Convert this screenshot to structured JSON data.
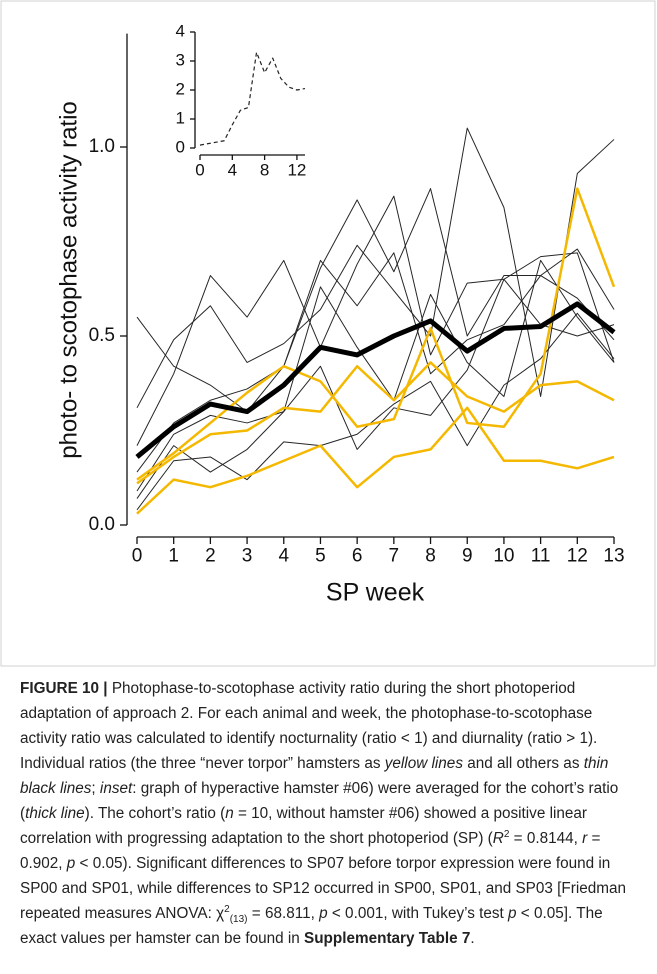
{
  "chart_data": [
    {
      "type": "line",
      "y_label": "photo- to scotophase activity ratio",
      "x_label": "SP week",
      "x": [
        0,
        1,
        2,
        3,
        4,
        5,
        6,
        7,
        8,
        9,
        10,
        11,
        12,
        13
      ],
      "xlim": [
        0,
        13
      ],
      "xticks": [
        0,
        1,
        2,
        3,
        4,
        5,
        6,
        7,
        8,
        9,
        10,
        11,
        12,
        13
      ],
      "ylim": [
        0,
        1.3
      ],
      "yticks": [
        {
          "value": 0,
          "label": "0.0"
        },
        {
          "value": 0.5,
          "label": "0.5"
        },
        {
          "value": 1,
          "label": "1.0"
        }
      ],
      "series": [
        {
          "color": "#262626",
          "width": 1,
          "values": [
            0.55,
            0.42,
            0.37,
            0.3,
            0.42,
            0.68,
            0.86,
            0.67,
            0.89,
            0.5,
            0.66,
            0.66,
            0.73,
            0.57
          ]
        },
        {
          "color": "#262626",
          "width": 1,
          "values": [
            0.31,
            0.49,
            0.58,
            0.43,
            0.48,
            0.57,
            0.74,
            0.62,
            0.5,
            1.05,
            0.84,
            0.34,
            0.93,
            1.02
          ]
        },
        {
          "color": "#262626",
          "width": 1,
          "values": [
            0.21,
            0.4,
            0.66,
            0.55,
            0.7,
            0.47,
            0.69,
            0.87,
            0.45,
            0.64,
            0.65,
            0.71,
            0.72,
            0.43
          ]
        },
        {
          "color": "#262626",
          "width": 1,
          "values": [
            0.14,
            0.27,
            0.33,
            0.36,
            0.42,
            0.7,
            0.58,
            0.72,
            0.4,
            0.49,
            0.53,
            0.66,
            0.6,
            0.49
          ]
        },
        {
          "color": "#262626",
          "width": 1,
          "values": [
            0.09,
            0.24,
            0.29,
            0.27,
            0.3,
            0.63,
            0.47,
            0.33,
            0.61,
            0.43,
            0.34,
            0.7,
            0.55,
            0.43
          ]
        },
        {
          "color": "#262626",
          "width": 1,
          "values": [
            0.07,
            0.21,
            0.14,
            0.2,
            0.3,
            0.42,
            0.2,
            0.31,
            0.29,
            0.41,
            0.65,
            0.53,
            0.5,
            0.53
          ]
        },
        {
          "color": "#262626",
          "width": 1,
          "values": [
            0.04,
            0.17,
            0.18,
            0.12,
            0.22,
            0.21,
            0.24,
            0.32,
            0.38,
            0.21,
            0.37,
            0.44,
            0.56,
            0.44
          ]
        },
        {
          "color": "#f5b800",
          "width": 2.5,
          "values": [
            0.12,
            0.19,
            0.27,
            0.35,
            0.42,
            0.38,
            0.26,
            0.28,
            0.52,
            0.27,
            0.26,
            0.4,
            0.89,
            0.63
          ]
        },
        {
          "color": "#f5b800",
          "width": 2.5,
          "values": [
            0.11,
            0.18,
            0.24,
            0.25,
            0.31,
            0.3,
            0.42,
            0.33,
            0.43,
            0.34,
            0.3,
            0.37,
            0.38,
            0.33
          ]
        },
        {
          "color": "#f5b800",
          "width": 2.5,
          "values": [
            0.03,
            0.12,
            0.1,
            0.13,
            0.17,
            0.21,
            0.1,
            0.18,
            0.2,
            0.31,
            0.17,
            0.17,
            0.15,
            0.18
          ]
        },
        {
          "color": "#000000",
          "width": 5,
          "values": [
            0.18,
            0.26,
            0.32,
            0.3,
            0.37,
            0.47,
            0.45,
            0.5,
            0.54,
            0.46,
            0.52,
            0.525,
            0.585,
            0.51
          ]
        }
      ]
    },
    {
      "type": "line",
      "dashed": true,
      "x": [
        0,
        1,
        2,
        3,
        4,
        5,
        6,
        7,
        8,
        9,
        10,
        11,
        12,
        13
      ],
      "xlim": [
        0,
        13
      ],
      "xticks": [
        0,
        4,
        8,
        12
      ],
      "ylim": [
        0,
        4
      ],
      "yticks": [
        0,
        1,
        2,
        3,
        4
      ],
      "series": [
        {
          "color": "#222222",
          "width": 1.2,
          "values": [
            0.1,
            0.15,
            0.2,
            0.25,
            0.8,
            1.3,
            1.4,
            3.3,
            2.6,
            3.1,
            2.4,
            2.1,
            2.0,
            2.05
          ]
        }
      ]
    }
  ],
  "caption": {
    "runs": [
      {
        "text": "FIGURE 10 | ",
        "style": "b"
      },
      "Photophase-to-scotophase activity ratio during the short photoperiod adaptation of approach 2. For each animal and week, the photophase-to-scotophase activity ratio was calculated to identify nocturnality (ratio < 1) and diurnality (ratio > 1). Individual ratios (the three “never torpor” hamsters as ",
      {
        "text": "yellow lines",
        "style": "i"
      },
      " and all others as ",
      {
        "text": "thin black lines",
        "style": "i"
      },
      "; ",
      {
        "text": "inset",
        "style": "i"
      },
      ": graph of hyperactive hamster #06) were averaged for the cohort’s ratio (",
      {
        "text": "thick line",
        "style": "i"
      },
      "). The cohort’s ratio (",
      {
        "text": "n",
        "style": "i"
      },
      " = 10, without hamster #06) showed a positive linear correlation with progressing adaptation to the short photoperiod (SP) (",
      {
        "text": "R",
        "style": "i"
      },
      {
        "text": "2",
        "style": "sup"
      },
      " = 0.8144, ",
      {
        "text": "r",
        "style": "i"
      },
      " = 0.902, ",
      {
        "text": "p",
        "style": "i"
      },
      " < 0.05). Significant differences to SP07 before torpor expression were found in SP00 and SP01, while differences to SP12 occurred in SP00, SP01, and SP03 [Friedman repeated measures ANOVA: χ",
      {
        "text": "2",
        "style": "sup"
      },
      {
        "text": "(13)",
        "style": "sub"
      },
      " = 68.811, ",
      {
        "text": "p",
        "style": "i"
      },
      " < 0.001, with Tukey’s test ",
      {
        "text": "p",
        "style": "i"
      },
      " < 0.05]. The exact values per hamster can be found in ",
      {
        "text": "Supplementary Table 7",
        "style": "b"
      },
      "."
    ]
  }
}
